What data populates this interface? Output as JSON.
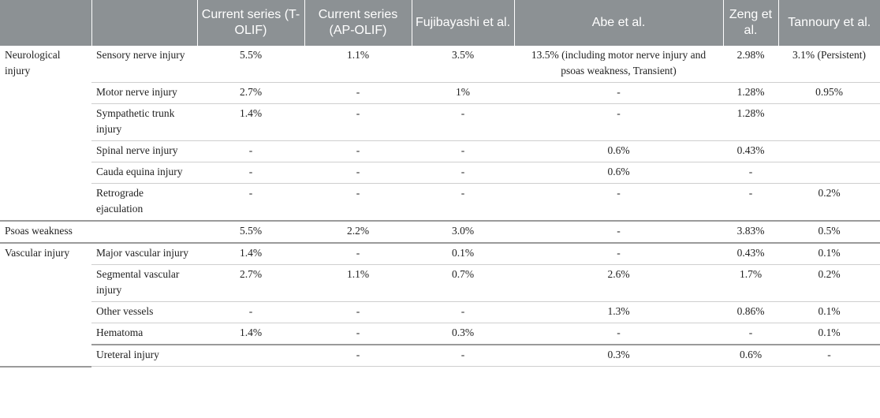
{
  "headers": [
    "",
    "",
    "Current series (T-OLIF)",
    "Current series (AP-OLIF)",
    "Fujibayashi et al.",
    "Abe et al.",
    "Zeng et al.",
    "Tannoury et al."
  ],
  "groups": {
    "neuro": "Neurological injury",
    "psoas": "Psoas weakness",
    "vascular": "Vascular injury",
    "ureteral": "Ureteral injury"
  },
  "rows": {
    "sensory": {
      "sub": "Sensory nerve injury",
      "v": [
        "5.5%",
        "1.1%",
        "3.5%",
        "13.5% (including motor nerve injury and psoas weakness, Transient)",
        "2.98%",
        "3.1% (Persistent)"
      ]
    },
    "motor": {
      "sub": "Motor nerve injury",
      "v": [
        "2.7%",
        "-",
        "1%",
        "-",
        "1.28%",
        "0.95%"
      ]
    },
    "sympathetic": {
      "sub": "Sympathetic trunk injury",
      "v": [
        "1.4%",
        "-",
        "-",
        "-",
        "1.28%",
        ""
      ]
    },
    "spinal": {
      "sub": "Spinal nerve injury",
      "v": [
        "-",
        "-",
        "-",
        "0.6%",
        "0.43%",
        ""
      ]
    },
    "cauda": {
      "sub": "Cauda equina injury",
      "v": [
        "-",
        "-",
        "-",
        "0.6%",
        "-",
        ""
      ]
    },
    "retro": {
      "sub": "Retrograde ejaculation",
      "v": [
        "-",
        "-",
        "-",
        "-",
        "-",
        "0.2%"
      ]
    },
    "psoas": {
      "sub": "",
      "v": [
        "5.5%",
        "2.2%",
        "3.0%",
        "-",
        "3.83%",
        "0.5%"
      ]
    },
    "major": {
      "sub": "Major vascular injury",
      "v": [
        "1.4%",
        "-",
        "0.1%",
        "-",
        "0.43%",
        "0.1%"
      ]
    },
    "segmental": {
      "sub": "Segmental vascular injury",
      "v": [
        "2.7%",
        "1.1%",
        "0.7%",
        "2.6%",
        "1.7%",
        "0.2%"
      ]
    },
    "other": {
      "sub": "Other vessels",
      "v": [
        "-",
        "-",
        "-",
        "1.3%",
        "0.86%",
        "0.1%"
      ]
    },
    "hematoma": {
      "sub": "Hematoma",
      "v": [
        "1.4%",
        "-",
        "0.3%",
        "-",
        "-",
        "0.1%"
      ]
    },
    "ureteral": {
      "sub": "",
      "v": [
        "-",
        "-",
        "0.3%",
        "0.6%",
        "-",
        "-"
      ]
    }
  }
}
